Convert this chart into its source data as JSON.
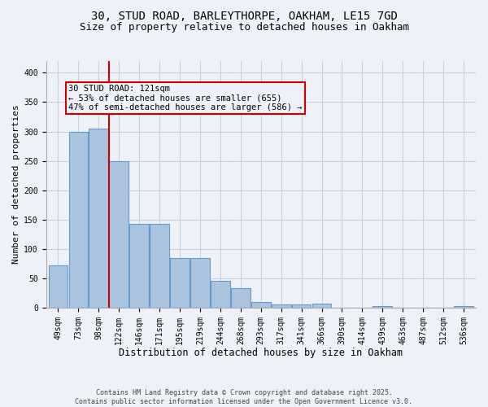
{
  "title_line1": "30, STUD ROAD, BARLEYTHORPE, OAKHAM, LE15 7GD",
  "title_line2": "Size of property relative to detached houses in Oakham",
  "xlabel": "Distribution of detached houses by size in Oakham",
  "ylabel": "Number of detached properties",
  "footer_line1": "Contains HM Land Registry data © Crown copyright and database right 2025.",
  "footer_line2": "Contains public sector information licensed under the Open Government Licence v3.0.",
  "categories": [
    "49sqm",
    "73sqm",
    "98sqm",
    "122sqm",
    "146sqm",
    "171sqm",
    "195sqm",
    "219sqm",
    "244sqm",
    "268sqm",
    "293sqm",
    "317sqm",
    "341sqm",
    "366sqm",
    "390sqm",
    "414sqm",
    "439sqm",
    "463sqm",
    "487sqm",
    "512sqm",
    "536sqm"
  ],
  "values": [
    72,
    300,
    305,
    250,
    143,
    143,
    85,
    85,
    45,
    33,
    10,
    6,
    6,
    7,
    0,
    0,
    3,
    0,
    0,
    0,
    3
  ],
  "bar_color": "#aac4e0",
  "bar_edge_color": "#6699cc",
  "annotation_line1": "30 STUD ROAD: 121sqm",
  "annotation_line2": "← 53% of detached houses are smaller (655)",
  "annotation_line3": "47% of semi-detached houses are larger (586) →",
  "vline_x_index": 3,
  "vline_color": "#cc0000",
  "annotation_box_edge_color": "#cc0000",
  "ylim": [
    0,
    420
  ],
  "yticks": [
    0,
    50,
    100,
    150,
    200,
    250,
    300,
    350,
    400
  ],
  "background_color": "#eef2f8",
  "plot_background_color": "#eef2f8",
  "grid_color": "#c5cfe0",
  "title_fontsize": 10,
  "subtitle_fontsize": 9,
  "tick_fontsize": 7,
  "xlabel_fontsize": 8.5,
  "ylabel_fontsize": 8,
  "annotation_fontsize": 7.5,
  "footer_fontsize": 6
}
